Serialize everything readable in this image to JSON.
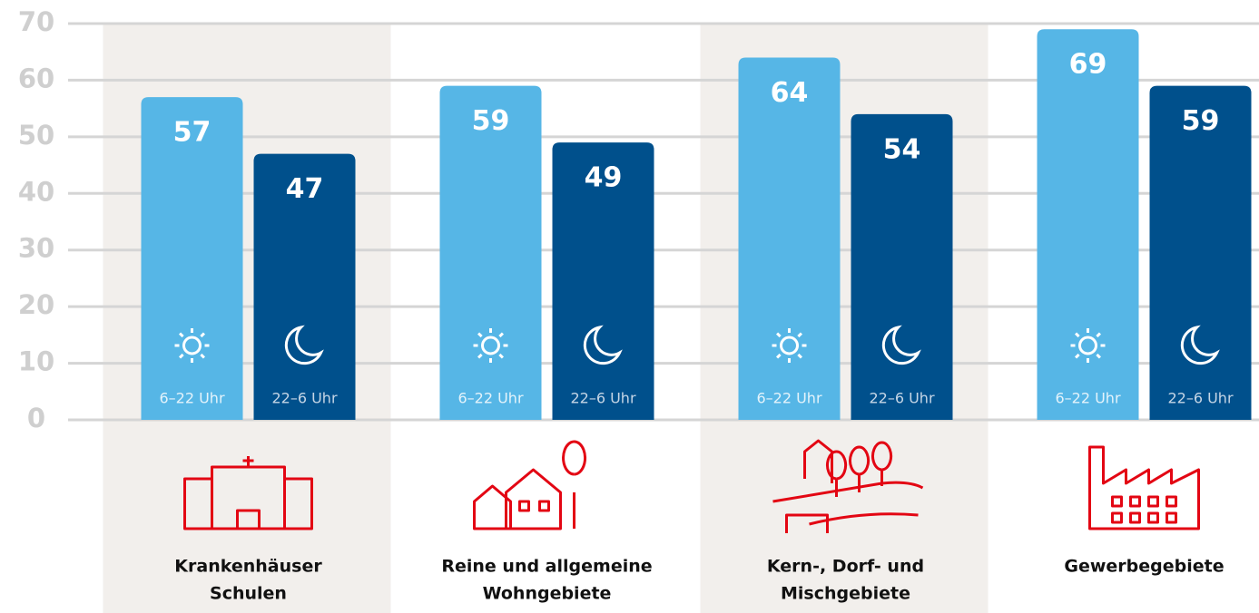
{
  "chart_data": {
    "type": "bar",
    "categories": [
      [
        "Krankenhäuser",
        "Schulen"
      ],
      [
        "Reine und allgemeine",
        "Wohngebiete"
      ],
      [
        "Kern-, Dorf- und",
        "Mischgebiete"
      ],
      [
        "Gewerbegebiete"
      ]
    ],
    "series": [
      {
        "name": "6–22 Uhr",
        "color": "#56b6e6",
        "values": [
          57,
          59,
          64,
          69
        ]
      },
      {
        "name": "22–6 Uhr",
        "color": "#00508c",
        "values": [
          47,
          49,
          54,
          59
        ]
      }
    ],
    "ylim": [
      0,
      70
    ],
    "yticks": [
      0,
      10,
      20,
      30,
      40,
      50,
      60,
      70
    ],
    "grid": true
  }
}
